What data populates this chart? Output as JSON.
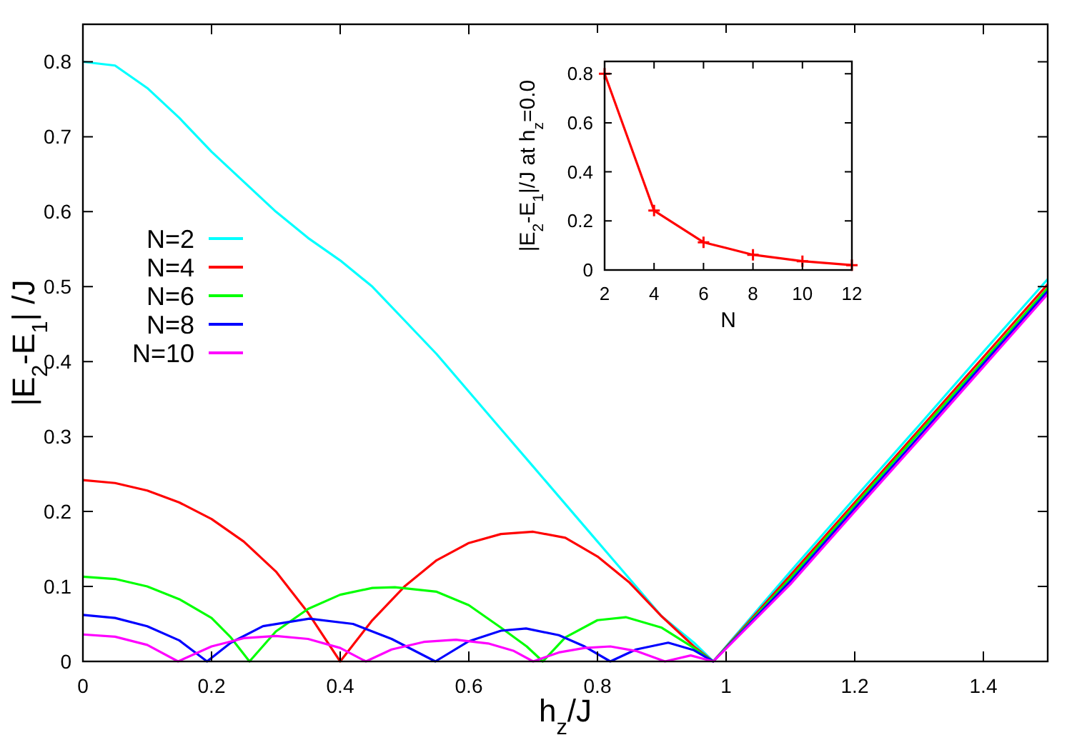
{
  "chart_data": [
    {
      "type": "line",
      "xlabel": "h$_{z}$/J",
      "ylabel": "|E$_{2}$-E$_{1}$| /J",
      "xlim": [
        0,
        1.5
      ],
      "xticks": [
        0,
        0.2,
        0.4,
        0.6,
        0.8,
        1,
        1.2,
        1.4
      ],
      "ylim": [
        0,
        0.85
      ],
      "yticks": [
        0,
        0.1,
        0.2,
        0.3,
        0.4,
        0.5,
        0.6,
        0.7,
        0.8
      ],
      "grid": false,
      "legend": "left",
      "marker": "none",
      "line_style": "solid",
      "series": [
        {
          "name": "N=2",
          "color": "#00ffff",
          "x": [
            0,
            0.05,
            0.1,
            0.15,
            0.2,
            0.25,
            0.3,
            0.35,
            0.4,
            0.45,
            0.5,
            0.55,
            0.6,
            0.65,
            0.7,
            0.75,
            0.8,
            0.85,
            0.9,
            0.95,
            0.98,
            1.1,
            1.2,
            1.3,
            1.4,
            1.5
          ],
          "values": [
            0.8,
            0.795,
            0.765,
            0.725,
            0.68,
            0.64,
            0.6,
            0.565,
            0.535,
            0.5,
            0.455,
            0.41,
            0.36,
            0.31,
            0.26,
            0.21,
            0.16,
            0.11,
            0.06,
            0.025,
            0,
            0.12,
            0.218,
            0.315,
            0.413,
            0.51
          ]
        },
        {
          "name": "N=4",
          "color": "#ff0000",
          "x": [
            0,
            0.05,
            0.1,
            0.15,
            0.2,
            0.25,
            0.3,
            0.35,
            0.4,
            0.45,
            0.5,
            0.55,
            0.6,
            0.65,
            0.7,
            0.75,
            0.8,
            0.85,
            0.9,
            0.95,
            0.98,
            1.1,
            1.2,
            1.3,
            1.4,
            1.5
          ],
          "values": [
            0.242,
            0.238,
            0.228,
            0.212,
            0.19,
            0.16,
            0.12,
            0.065,
            0,
            0.055,
            0.1,
            0.135,
            0.158,
            0.17,
            0.173,
            0.165,
            0.14,
            0.105,
            0.06,
            0.02,
            0,
            0.115,
            0.212,
            0.309,
            0.406,
            0.503
          ]
        },
        {
          "name": "N=6",
          "color": "#00ff00",
          "x": [
            0,
            0.05,
            0.1,
            0.15,
            0.2,
            0.23,
            0.259,
            0.3,
            0.35,
            0.4,
            0.45,
            0.485,
            0.55,
            0.6,
            0.65,
            0.69,
            0.715,
            0.75,
            0.8,
            0.844,
            0.9,
            0.95,
            0.98,
            1.1,
            1.2,
            1.3,
            1.4,
            1.5
          ],
          "values": [
            0.113,
            0.11,
            0.1,
            0.083,
            0.058,
            0.032,
            0,
            0.04,
            0.07,
            0.089,
            0.098,
            0.099,
            0.093,
            0.075,
            0.045,
            0.02,
            0,
            0.032,
            0.055,
            0.059,
            0.045,
            0.018,
            0,
            0.111,
            0.208,
            0.305,
            0.401,
            0.498
          ]
        },
        {
          "name": "N=8",
          "color": "#0000ff",
          "x": [
            0,
            0.05,
            0.1,
            0.15,
            0.193,
            0.23,
            0.28,
            0.352,
            0.42,
            0.48,
            0.548,
            0.6,
            0.65,
            0.689,
            0.74,
            0.78,
            0.82,
            0.86,
            0.91,
            0.95,
            0.98,
            1.1,
            1.2,
            1.3,
            1.4,
            1.5
          ],
          "values": [
            0.062,
            0.058,
            0.047,
            0.028,
            0,
            0.025,
            0.047,
            0.057,
            0.05,
            0.03,
            0,
            0.027,
            0.041,
            0.044,
            0.035,
            0.02,
            0,
            0.016,
            0.025,
            0.015,
            0,
            0.107,
            0.204,
            0.3,
            0.397,
            0.494
          ]
        },
        {
          "name": "N=10",
          "color": "#ff00ff",
          "x": [
            0,
            0.05,
            0.1,
            0.148,
            0.2,
            0.25,
            0.3,
            0.35,
            0.4,
            0.44,
            0.48,
            0.53,
            0.58,
            0.63,
            0.67,
            0.7,
            0.74,
            0.78,
            0.82,
            0.86,
            0.905,
            0.945,
            0.98,
            1.1,
            1.2,
            1.3,
            1.4,
            1.5
          ],
          "values": [
            0.036,
            0.033,
            0.022,
            0,
            0.02,
            0.031,
            0.034,
            0.03,
            0.018,
            0,
            0.016,
            0.026,
            0.029,
            0.024,
            0.014,
            0,
            0.012,
            0.018,
            0.02,
            0.014,
            0,
            0.008,
            0,
            0.103,
            0.2,
            0.296,
            0.393,
            0.49
          ]
        }
      ]
    },
    {
      "type": "line",
      "xlabel": "N",
      "ylabel": "|E$_{2}$-E$_{1}$|/J at h$_{z}$=0.0",
      "xlim": [
        2,
        12
      ],
      "xticks": [
        2,
        4,
        6,
        8,
        10,
        12
      ],
      "ylim": [
        0,
        0.85
      ],
      "yticks": [
        0,
        {
          "value": 0.2,
          "label": "0.2"
        },
        {
          "value": 0.4,
          "label": "0.4"
        },
        {
          "value": 0.6,
          "label": "0.6"
        },
        {
          "value": 0.8,
          "label": "0.8"
        }
      ],
      "grid": false,
      "legend": false,
      "marker": "cross",
      "line_style": "solid",
      "series": [
        {
          "color": "#ff0000",
          "x": [
            2,
            4,
            6,
            8,
            10,
            12
          ],
          "values": [
            0.8,
            0.242,
            0.113,
            0.062,
            0.036,
            0.02
          ]
        }
      ]
    }
  ]
}
